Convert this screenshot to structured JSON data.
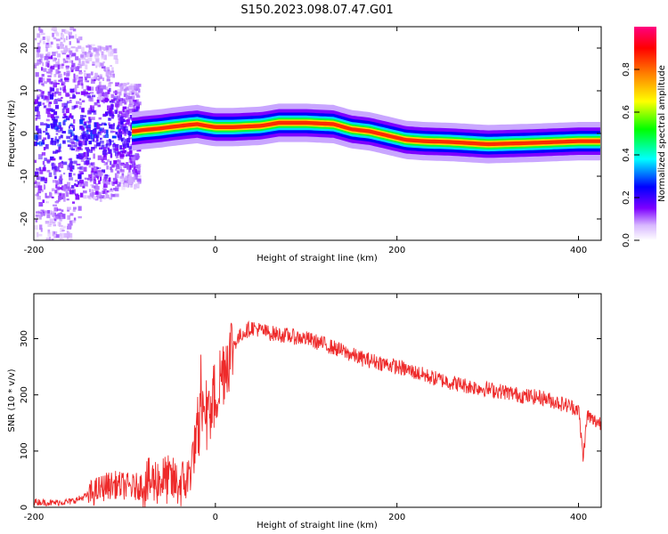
{
  "title": "S150.2023.098.07.47.G01",
  "chart_data": [
    {
      "type": "heatmap",
      "xlabel": "Height of straight line (km)",
      "ylabel": "Frequency (Hz)",
      "xlim": [
        -200,
        425
      ],
      "ylim": [
        -25,
        25
      ],
      "x_ticks": [
        -200,
        0,
        200,
        400
      ],
      "y_ticks": [
        -20,
        -10,
        0,
        10,
        20
      ],
      "colorbar": {
        "label": "Normalized spectral amplitude",
        "range": [
          0,
          1
        ],
        "ticks": [
          "0.0",
          "0.2",
          "0.4",
          "0.6",
          "0.8"
        ],
        "colors": [
          "#ffffff",
          "#7d00ff",
          "#0000ff",
          "#00ffff",
          "#00ff00",
          "#ffff00",
          "#ff7f00",
          "#ff0000",
          "#ff0080"
        ]
      },
      "ridge": {
        "x": [
          -90,
          -80,
          -70,
          -60,
          -50,
          -30,
          -20,
          -10,
          0,
          20,
          50,
          70,
          100,
          130,
          150,
          170,
          190,
          210,
          230,
          260,
          300,
          350,
          400,
          425
        ],
        "y": [
          0.5,
          0.8,
          1.0,
          1.2,
          1.5,
          2.0,
          2.2,
          1.8,
          1.5,
          1.5,
          1.8,
          2.5,
          2.5,
          2.2,
          1.0,
          0.5,
          -0.5,
          -1.5,
          -1.8,
          -2.0,
          -2.5,
          -2.2,
          -1.8,
          -1.8
        ]
      }
    },
    {
      "type": "line",
      "xlabel": "Height of straight line (km)",
      "ylabel": "SNR (10 * v/v)",
      "xlim": [
        -200,
        425
      ],
      "ylim": [
        0,
        380
      ],
      "x_ticks": [
        -200,
        0,
        200,
        400
      ],
      "y_ticks": [
        0,
        100,
        200,
        300
      ],
      "color": "#ee2a2a",
      "series": [
        {
          "x": [
            -200,
            -180,
            -160,
            -150,
            -140,
            -130,
            -120,
            -110,
            -100,
            -90,
            -80,
            -70,
            -60,
            -50,
            -40,
            -30,
            -20,
            -10,
            0,
            10,
            20,
            30,
            40,
            50,
            60,
            80,
            100,
            120,
            140,
            160,
            180,
            200,
            220,
            240,
            260,
            280,
            300,
            320,
            340,
            360,
            380,
            400,
            405,
            410,
            415,
            425
          ],
          "y": [
            10,
            8,
            10,
            15,
            22,
            30,
            38,
            40,
            38,
            35,
            40,
            45,
            50,
            48,
            40,
            50,
            130,
            160,
            200,
            255,
            290,
            310,
            320,
            315,
            310,
            305,
            300,
            290,
            278,
            265,
            258,
            250,
            240,
            230,
            222,
            215,
            210,
            205,
            198,
            195,
            185,
            175,
            90,
            165,
            155,
            150
          ]
        }
      ]
    }
  ]
}
